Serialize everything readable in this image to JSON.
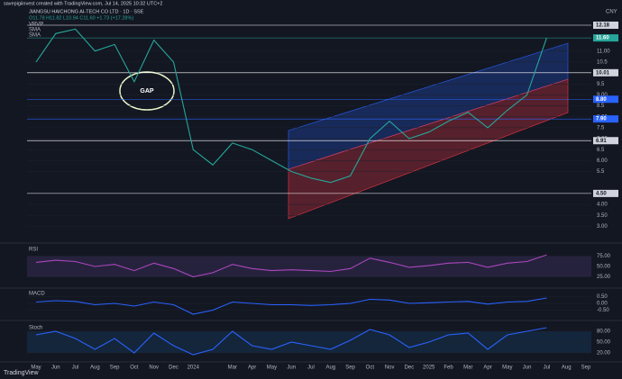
{
  "header": {
    "credit": "savepigiinvest created with TradingView.com, Jul 14, 2025 10:32 UTC+2",
    "currency": "CNY",
    "footer": "TradingView"
  },
  "chart_data": {
    "type": "line",
    "title": "JIANGSU HAICHONG AI-TECH CO LTD · 1D · SSE",
    "subtitle": "O11.78 H11.82 L10.94 C11.60 +1.73 (+17.28%)",
    "legend_items": [
      "VRVP",
      "SMA",
      "SMA"
    ],
    "annotation": "GAP",
    "categories": [
      "May",
      "Jun",
      "Jul",
      "Aug",
      "Sep",
      "Oct",
      "Nov",
      "Dec",
      "2024",
      null,
      "Mar",
      "Apr",
      "May",
      "Jun",
      "Jul",
      "Aug",
      "Sep",
      "Oct",
      "Nov",
      "Dec",
      "2025",
      "Feb",
      "Mar",
      "Apr",
      "May",
      "Jun",
      "Jul",
      "Aug",
      "Sep"
    ],
    "series": [
      {
        "name": "Close",
        "color": "#26a69a",
        "values": [
          10.5,
          11.8,
          12.0,
          11.0,
          11.3,
          9.6,
          11.5,
          10.5,
          6.5,
          5.8,
          6.8,
          6.5,
          6.0,
          5.5,
          5.2,
          5.0,
          5.3,
          7.0,
          7.8,
          7.0,
          7.3,
          7.8,
          8.2,
          7.5,
          8.3,
          9.0,
          11.6,
          null,
          null
        ]
      }
    ],
    "ylim": [
      2.44,
      12.92
    ],
    "yticks": [
      {
        "value": 3,
        "label": "3.00"
      },
      {
        "value": 3.5,
        "label": "3.50"
      },
      {
        "value": 4,
        "label": "4.00"
      },
      5.5,
      {
        "value": 6,
        "label": "6.00"
      },
      6.5,
      {
        "value": 7,
        "label": "7.00"
      },
      7.5,
      {
        "value": 8,
        "label": "8.00"
      },
      8.5,
      {
        "value": 9,
        "label": "9.00"
      },
      9.5,
      10.5,
      {
        "value": 11,
        "label": "11.00"
      }
    ],
    "levels": [
      {
        "value": 12.18,
        "color": "#ffffff"
      },
      {
        "value": 11.6,
        "label": "11.60",
        "color": "#26a69a"
      },
      {
        "value": 10.01,
        "color": "#ffffff"
      },
      {
        "value": 8.8,
        "label": "8.80",
        "color": "#2962ff"
      },
      {
        "value": 7.9,
        "label": "7.90",
        "color": "#2962ff"
      },
      {
        "value": 6.91,
        "color": "#ffffff"
      },
      {
        "value": 4.5,
        "label": "4.50",
        "color": "#ffffff"
      }
    ],
    "panes": [
      {
        "name": "RSI",
        "color": "#ab47bc",
        "ylim": [
          0,
          100
        ],
        "yticks": [
          {
            "value": 75,
            "label": "75.00"
          },
          {
            "value": 50,
            "label": "50.00"
          },
          {
            "value": 25,
            "label": "25.00"
          }
        ],
        "values": [
          60,
          65,
          62,
          50,
          55,
          40,
          58,
          45,
          25,
          35,
          55,
          45,
          40,
          42,
          40,
          38,
          45,
          70,
          60,
          48,
          52,
          58,
          60,
          48,
          58,
          62,
          78,
          null,
          null
        ]
      },
      {
        "name": "MACD",
        "color": "#2962ff",
        "ylim": [
          -1,
          1
        ],
        "yticks": [
          {
            "value": 0.5,
            "label": "0.50"
          },
          {
            "value": 0,
            "label": "0.00"
          },
          {
            "value": -0.5,
            "label": "-0.50"
          }
        ],
        "values": [
          0.1,
          0.2,
          0.15,
          -0.1,
          0,
          -0.2,
          0.1,
          -0.1,
          -0.8,
          -0.5,
          0.1,
          0,
          -0.1,
          -0.1,
          -0.15,
          -0.1,
          0,
          0.3,
          0.25,
          0,
          0.05,
          0.1,
          0.15,
          -0.05,
          0.1,
          0.15,
          0.4,
          null,
          null
        ]
      },
      {
        "name": "Stoch",
        "color": "#2962ff",
        "ylim": [
          0,
          100
        ],
        "yticks": [
          {
            "value": 80,
            "label": "80.00"
          },
          {
            "value": 50,
            "label": "50.00"
          },
          {
            "value": 20,
            "label": "20.00"
          }
        ],
        "values": [
          70,
          80,
          60,
          30,
          60,
          20,
          75,
          40,
          15,
          30,
          80,
          40,
          30,
          50,
          40,
          30,
          55,
          85,
          70,
          35,
          50,
          70,
          75,
          30,
          70,
          80,
          90,
          null,
          null
        ]
      }
    ]
  }
}
